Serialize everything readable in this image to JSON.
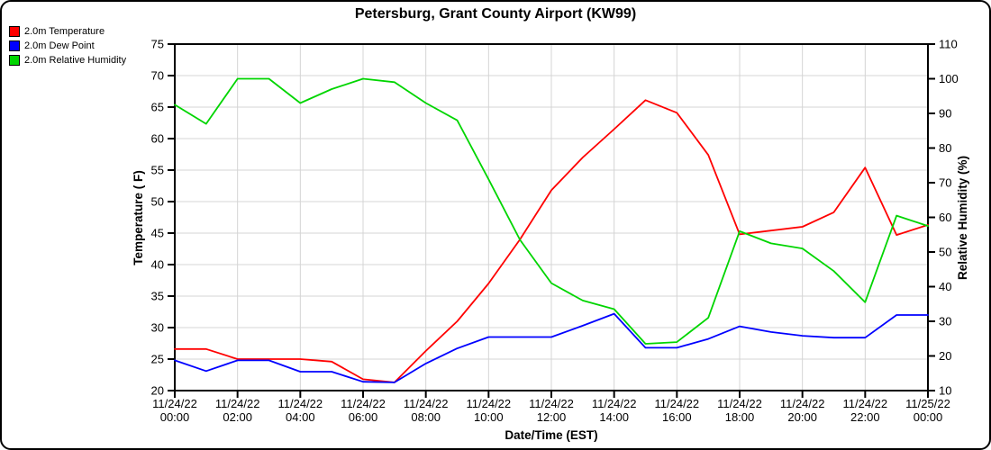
{
  "window": {
    "background_color": "#ffffff",
    "border_color": "#000000"
  },
  "title": "Petersburg, Grant County Airport (KW99)",
  "legend": [
    {
      "label": "2.0m Temperature",
      "color": "#ff0000"
    },
    {
      "label": "2.0m Dew Point",
      "color": "#0000ff"
    },
    {
      "label": "2.0m Relative Humidity",
      "color": "#00d500"
    }
  ],
  "chart_data": {
    "type": "line",
    "title": "Petersburg, Grant County Airport (KW99)",
    "grid": true,
    "grid_color": "#d4d4d4",
    "axis_color": "#000000",
    "legend_position": "top-left",
    "x_axis": {
      "label": "Date/Time (EST)",
      "hours": [
        0,
        1,
        2,
        3,
        4,
        5,
        6,
        7,
        8,
        9,
        10,
        11,
        12,
        13,
        14,
        15,
        16,
        17,
        18,
        19,
        20,
        21,
        22,
        23,
        24
      ],
      "tick_hours": [
        0,
        2,
        4,
        6,
        8,
        10,
        12,
        14,
        16,
        18,
        20,
        22,
        24
      ],
      "tick_labels": [
        {
          "date": "11/24/22",
          "time": "00:00"
        },
        {
          "date": "11/24/22",
          "time": "02:00"
        },
        {
          "date": "11/24/22",
          "time": "04:00"
        },
        {
          "date": "11/24/22",
          "time": "06:00"
        },
        {
          "date": "11/24/22",
          "time": "08:00"
        },
        {
          "date": "11/24/22",
          "time": "10:00"
        },
        {
          "date": "11/24/22",
          "time": "12:00"
        },
        {
          "date": "11/24/22",
          "time": "14:00"
        },
        {
          "date": "11/24/22",
          "time": "16:00"
        },
        {
          "date": "11/24/22",
          "time": "18:00"
        },
        {
          "date": "11/24/22",
          "time": "20:00"
        },
        {
          "date": "11/24/22",
          "time": "22:00"
        },
        {
          "date": "11/25/22",
          "time": "00:00"
        }
      ]
    },
    "y_left": {
      "label": "Temperature ( F)",
      "min": 20,
      "max": 75,
      "ticks": [
        20,
        25,
        30,
        35,
        40,
        45,
        50,
        55,
        60,
        65,
        70,
        75
      ]
    },
    "y_right": {
      "label": "Relative Humidity (%)",
      "min": 10,
      "max": 110,
      "ticks": [
        10,
        20,
        30,
        40,
        50,
        60,
        70,
        80,
        90,
        100,
        110
      ]
    },
    "series": [
      {
        "name": "2.0m Temperature",
        "color": "#ff0000",
        "axis": "left",
        "values": [
          26.6,
          26.6,
          25.0,
          25.0,
          25.0,
          24.6,
          21.8,
          21.3,
          26.3,
          31.0,
          37.0,
          44.0,
          51.8,
          57.0,
          61.5,
          66.1,
          64.1,
          57.4,
          44.8,
          45.4,
          46.0,
          48.3,
          55.4,
          44.7,
          46.3
        ]
      },
      {
        "name": "2.0m Dew Point",
        "color": "#0000ff",
        "axis": "left",
        "values": [
          24.8,
          23.1,
          24.8,
          24.8,
          23.0,
          23.0,
          21.4,
          21.3,
          24.3,
          26.7,
          28.5,
          28.5,
          28.5,
          30.3,
          32.2,
          26.8,
          26.8,
          28.2,
          30.2,
          29.3,
          28.7,
          28.4,
          28.4,
          32.0,
          32.0
        ]
      },
      {
        "name": "2.0m Relative Humidity",
        "color": "#00d500",
        "axis": "right",
        "values": [
          92.5,
          87.0,
          100.0,
          100.0,
          93.0,
          97.0,
          100.0,
          99.0,
          93.0,
          88.0,
          71.0,
          53.5,
          41.0,
          36.0,
          33.5,
          23.5,
          24.0,
          31.0,
          56.0,
          52.5,
          51.0,
          44.5,
          35.5,
          60.5,
          57.5
        ]
      }
    ]
  }
}
